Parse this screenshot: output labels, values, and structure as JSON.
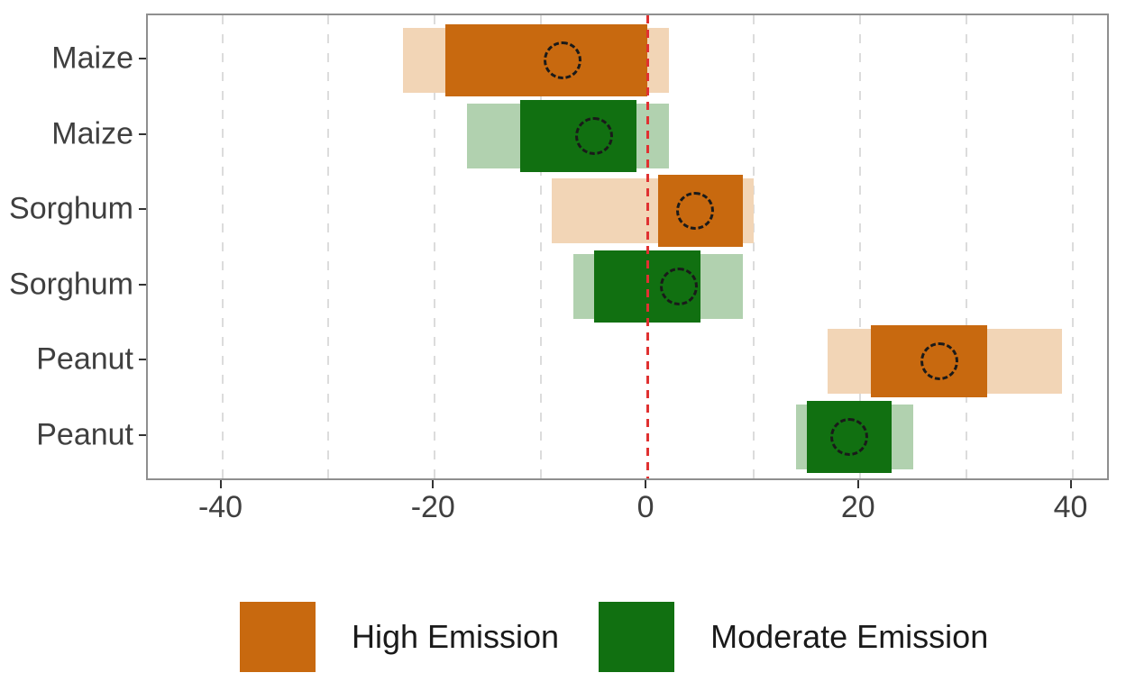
{
  "chart_data": {
    "type": "crossbar",
    "title": "",
    "xlabel": "",
    "ylabel": "",
    "x_ticks": [
      -40,
      -20,
      0,
      20,
      40
    ],
    "x_range": [
      -47,
      43.6
    ],
    "gridlines": [
      -40,
      -30,
      -20,
      -10,
      10,
      20,
      30,
      40
    ],
    "zero_line": 0,
    "grid_on": true,
    "legend_position": "bottom",
    "categories": [
      "Maize",
      "Maize",
      "Sorghum",
      "Sorghum",
      "Peanut",
      "Peanut"
    ],
    "rows": [
      {
        "label": "Maize",
        "scenario": "High Emission",
        "outer": [
          -23,
          2
        ],
        "inner": [
          -19,
          0
        ],
        "center": -8
      },
      {
        "label": "Maize",
        "scenario": "Moderate Emission",
        "outer": [
          -17,
          2
        ],
        "inner": [
          -12,
          -1
        ],
        "center": -5
      },
      {
        "label": "Sorghum",
        "scenario": "High Emission",
        "outer": [
          -9,
          10
        ],
        "inner": [
          1,
          9
        ],
        "center": 4.5
      },
      {
        "label": "Sorghum",
        "scenario": "Moderate Emission",
        "outer": [
          -7,
          9
        ],
        "inner": [
          -5,
          5
        ],
        "center": 3
      },
      {
        "label": "Peanut",
        "scenario": "High Emission",
        "outer": [
          17,
          39
        ],
        "inner": [
          21,
          32
        ],
        "center": 27.5
      },
      {
        "label": "Peanut",
        "scenario": "Moderate Emission",
        "outer": [
          14,
          25
        ],
        "inner": [
          15,
          23
        ],
        "center": 19
      }
    ],
    "legend": [
      {
        "label": "High Emission",
        "color": "#c8690f",
        "light_color": "#f2d5b6"
      },
      {
        "label": "Moderate Emission",
        "color": "#117011",
        "light_color": "#b1d1af"
      }
    ],
    "colors": {
      "grid": "#dcdcdc",
      "zero_line": "#e03131",
      "axis_text": "#3f3f3f",
      "panel_border": "#8f8f8f",
      "marker_outline": "#1a1a1a"
    }
  }
}
